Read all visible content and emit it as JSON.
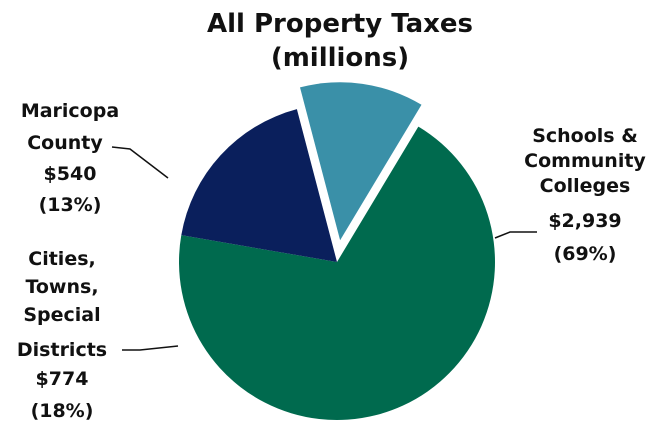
{
  "chart_data": {
    "type": "pie",
    "title": "All Property Taxes",
    "subtitle": "(millions)",
    "legend": "none",
    "slices": [
      {
        "name": "Schools & Community Colleges",
        "label_lines": [
          "Schools &",
          "Community",
          "Colleges"
        ],
        "value_text": "$2,939",
        "percent_text": "(69%)",
        "value": 2939,
        "percent": 69,
        "color": "#006A4E",
        "exploded": false
      },
      {
        "name": "Cities, Towns, Special Districts",
        "label_lines": [
          "Cities,",
          "Towns,",
          "Special",
          "Districts"
        ],
        "value_text": "$774",
        "percent_text": "(18%)",
        "value": 774,
        "percent": 18,
        "color": "#0A1F5C",
        "exploded": false
      },
      {
        "name": "Maricopa County",
        "label_lines": [
          "Maricopa",
          "County"
        ],
        "value_text": "$540",
        "percent_text": "(13%)",
        "value": 540,
        "percent": 13,
        "color": "#3A90A8",
        "exploded": true
      }
    ]
  }
}
